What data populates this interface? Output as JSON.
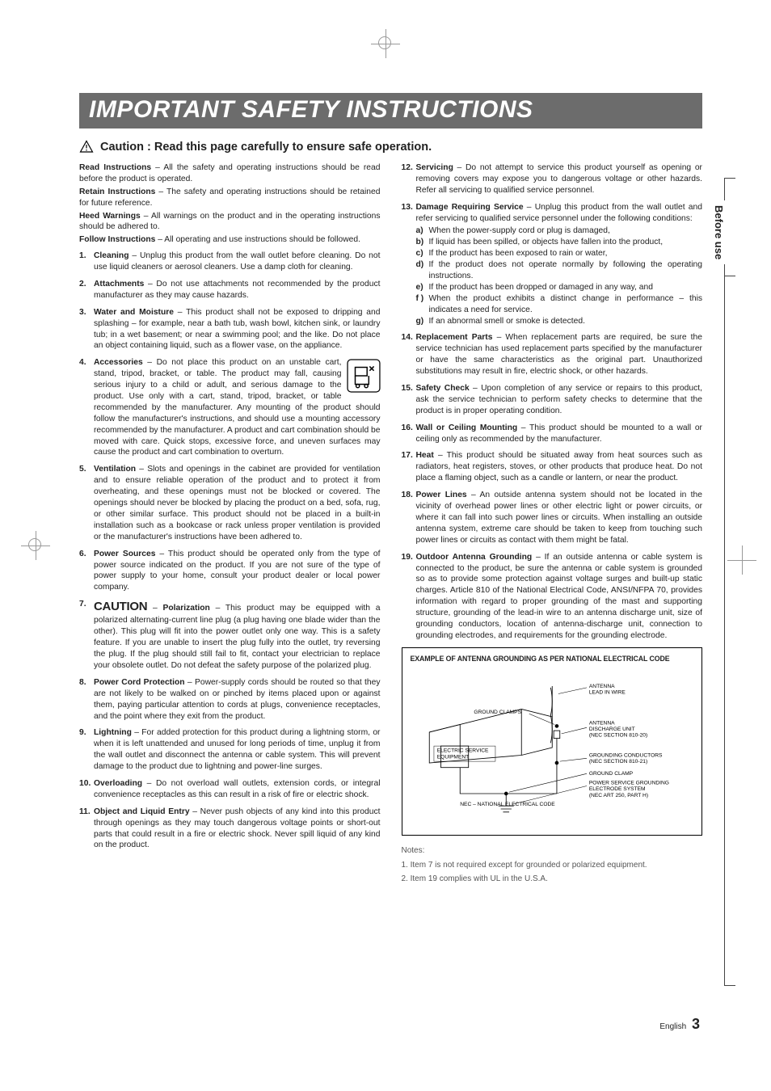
{
  "title": "IMPORTANT SAFETY INSTRUCTIONS",
  "caution_heading": "Caution : Read this page carefully to ensure safe operation.",
  "side_tab": "Before use",
  "intro": [
    {
      "head": "Read Instructions",
      "body": " – All the safety and operating instructions should be read before the product is operated."
    },
    {
      "head": "Retain Instructions",
      "body": " – The safety and operating instructions should be retained for future reference."
    },
    {
      "head": "Heed Warnings",
      "body": " – All warnings on the product and in the operating instructions should be adhered to."
    },
    {
      "head": "Follow Instructions",
      "body": " – All operating and use instructions should be followed."
    }
  ],
  "left_items": [
    {
      "head": "Cleaning",
      "body": " – Unplug this product from the wall outlet before cleaning. Do not use liquid cleaners or aerosol cleaners. Use a damp cloth for cleaning."
    },
    {
      "head": "Attachments",
      "body": " – Do not use attachments not recommended by the product manufacturer as they may cause hazards."
    },
    {
      "head": "Water and Moisture",
      "body": " – This product shall not be exposed to dripping and splashing – for example, near a bath tub, wash bowl, kitchen sink, or laundry tub; in a wet basement; or near a swimming pool; and the like. Do not place an object containing liquid, such as a flower vase, on the appliance."
    },
    {
      "head": "Accessories",
      "body": " – Do not place this product on an unstable cart, stand, tripod, bracket, or table. The product may fall, causing serious injury to a child or adult, and serious damage to the product. Use only with a cart, stand, tripod, bracket, or table recommended by the manufacturer. Any mounting of the product should follow the manufacturer's instructions, and should use a mounting accessory recommended by the manufacturer. A product and cart combination should be moved with care. Quick stops, excessive force, and uneven surfaces may cause the product and cart combination to overturn.",
      "icon": true
    },
    {
      "head": "Ventilation",
      "body": " – Slots and openings in the cabinet are provided for ventilation and to ensure reliable operation of the product and to protect it from overheating, and these openings must not be blocked or covered. The openings should never be blocked by placing the product on a bed, sofa, rug, or other similar surface. This product should not be placed in a built-in installation such as a bookcase or rack unless proper ventilation is provided or the manufacturer's instructions have been adhered to."
    },
    {
      "head": "Power Sources",
      "body": " – This product should be operated only from the type of power source indicated on the product. If you are not sure of the type of power supply to your home, consult your product dealer or local power company."
    },
    {
      "caution": "CAUTION",
      "head": "Polarization",
      "body": " – This product may be equipped with a polarized alternating-current line plug (a plug having one blade wider than the other). This plug will fit into the power outlet only one way. This is a safety feature. If you are unable to insert the plug fully into the outlet, try reversing the plug. If the plug should still fail to fit, contact your electrician to replace your obsolete outlet. Do not defeat the safety purpose of the polarized plug."
    },
    {
      "head": "Power Cord Protection",
      "body": " – Power-supply cords should be routed so that they are not likely to be walked on or pinched by items placed upon or against them, paying particular attention to cords at plugs, convenience receptacles, and the point where they exit from the product."
    },
    {
      "head": "Lightning",
      "body": " – For added protection for this product during a lightning storm, or when it is left unattended and unused for long periods of time, unplug it from the wall outlet and disconnect the antenna or cable system. This will prevent damage to the product due to lightning and power-line surges."
    },
    {
      "head": "Overloading",
      "body": " – Do not overload wall outlets, extension cords, or integral convenience receptacles as this can result in a risk of fire or electric shock."
    },
    {
      "head": "Object and Liquid Entry",
      "body": " – Never push objects of any kind into this product through openings as they may touch dangerous voltage points or short-out parts that could result in a fire or electric shock. Never spill liquid of any kind on the product."
    }
  ],
  "right_items": [
    {
      "head": "Servicing",
      "body": " – Do not attempt to service this product yourself as opening or removing covers may expose you to dangerous voltage or other hazards. Refer all servicing to qualified service personnel."
    }
  ],
  "item13": {
    "head": "Damage Requiring Service",
    "body_intro": " – Unplug this product from the wall outlet and refer servicing to qualified service personnel under the following conditions:",
    "subs": [
      {
        "l": "a)",
        "t": "When the power-supply cord or plug is damaged,"
      },
      {
        "l": "b)",
        "t": "If liquid has been spilled, or objects have fallen into the product,"
      },
      {
        "l": "c)",
        "t": "If the product has been exposed to rain or water,"
      },
      {
        "l": "d)",
        "t": "If the product does not operate normally by following the operating instructions."
      },
      {
        "l": "e)",
        "t": "If the product has been dropped or damaged in any way, and"
      },
      {
        "l": "f )",
        "t": "When the product exhibits a distinct change in performance – this indicates a need for service."
      },
      {
        "l": "g)",
        "t": "If an abnormal smell or smoke is detected."
      }
    ]
  },
  "right_items_rest": [
    {
      "head": "Replacement Parts",
      "body": " – When replacement parts are required, be sure the service technician has used replacement parts specified by the manufacturer or have the same characteristics as the original part. Unauthorized substitutions may result in fire, electric shock, or other hazards."
    },
    {
      "head": "Safety Check",
      "body": " – Upon completion of any service or repairs to this product, ask the service technician to perform safety checks to determine that the product is in proper operating condition."
    },
    {
      "head": "Wall or Ceiling Mounting",
      "body": " – This product should be mounted to a wall or ceiling only as recommended by the manufacturer."
    },
    {
      "head": "Heat",
      "body": " – This product should be situated away from heat sources such as radiators, heat registers, stoves, or other products that produce heat. Do not place a flaming object, such as a candle or lantern, or near the product."
    },
    {
      "head": "Power Lines",
      "body": " – An outside antenna system should not be located in the vicinity of overhead power lines or other electric light or power circuits, or where it can fall into such power lines or circuits. When installing an outside antenna system, extreme care should be taken to keep from touching such power lines or circuits as contact with them might be fatal."
    },
    {
      "head": "Outdoor Antenna Grounding",
      "body": " – If an outside antenna or cable system is connected to the product, be sure the antenna or cable system is grounded so as to provide some protection against voltage surges and built-up static charges. Article 810 of the National Electrical Code, ANSI/NFPA 70, provides information with regard to proper grounding of the mast and supporting structure, grounding of the lead-in wire to an antenna discharge unit, size of grounding conductors, location of antenna-discharge unit, connection to grounding electrodes, and requirements for the grounding electrode."
    }
  ],
  "diagram": {
    "heading": "EXAMPLE OF ANTENNA GROUNDING AS PER NATIONAL ELECTRICAL CODE",
    "labels": {
      "antenna_lead": "ANTENNA LEAD IN WIRE",
      "ground_clamps": "GROUND CLAMPS",
      "discharge": "ANTENNA DISCHARGE UNIT (NEC SECTION 810-20)",
      "electric_service": "ELECTRIC SERVICE EQUIPMENT",
      "grounding_cond": "GROUNDING CONDUCTORS (NEC SECTION 810-21)",
      "ground_clamp": "GROUND CLAMP",
      "power_service": "POWER SERVICE GROUNDING ELECTRODE SYSTEM (NEC ART 250, PART H)",
      "nec": "NEC – NATIONAL ELECTRICAL CODE"
    }
  },
  "notes_heading": "Notes:",
  "notes": [
    "1.  Item 7 is not required except for grounded or polarized equipment.",
    "2.  Item 19 complies with UL in the U.S.A."
  ],
  "footer_lang": "English",
  "footer_page": "3"
}
